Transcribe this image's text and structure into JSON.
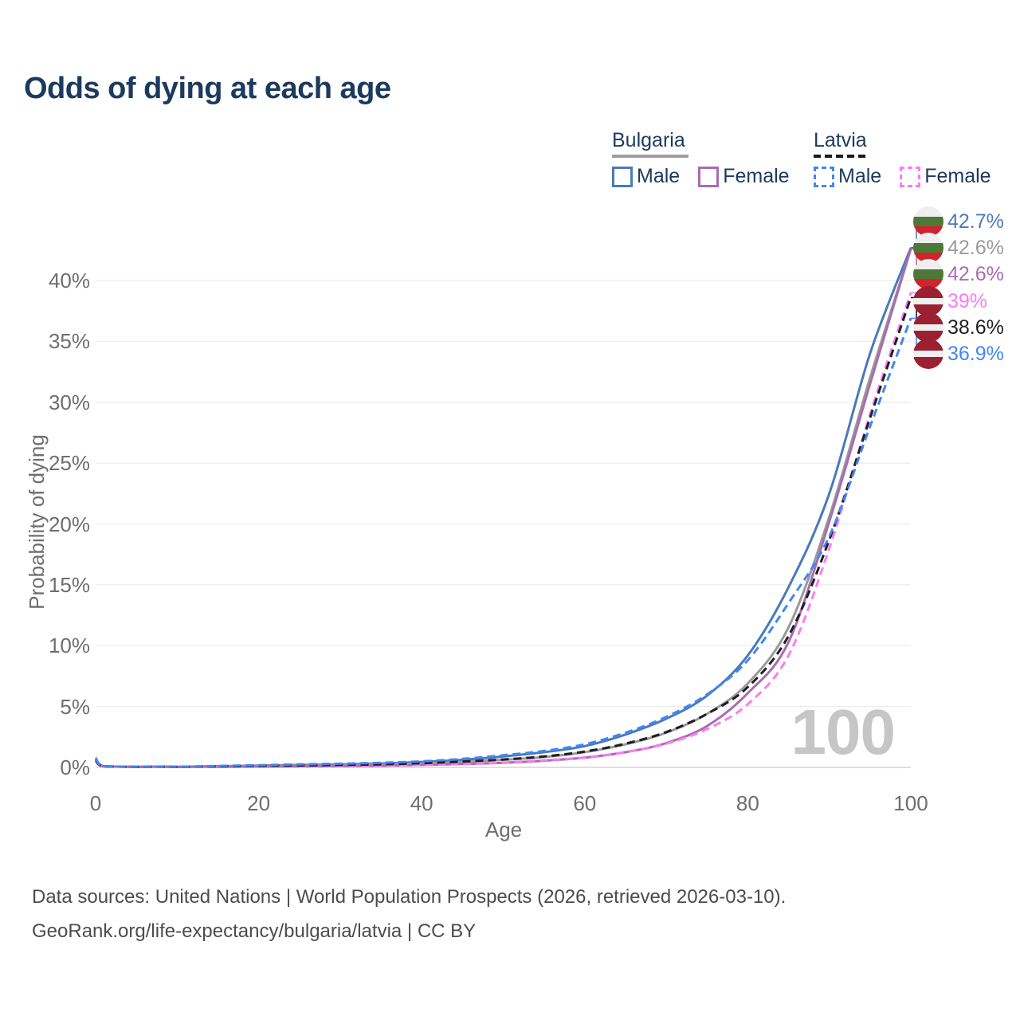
{
  "title": "Odds of dying at each age",
  "watermark": "100",
  "colors": {
    "title": "#1c3a5e",
    "legend_text": "#1d3a5e",
    "axis_text": "#6e6e6e",
    "grid": "#ececec",
    "axis_line": "#c9c9c9",
    "watermark": "#c6c6c6",
    "footer": "#4c4c4c"
  },
  "legend": {
    "groups": [
      {
        "label": "Bulgaria",
        "rule_style": "solid",
        "rule_color": "#9e9e9e",
        "items": [
          {
            "label": "Male",
            "color": "#4a7ab9",
            "dashed": false
          },
          {
            "label": "Female",
            "color": "#a96cb0",
            "dashed": false
          }
        ]
      },
      {
        "label": "Latvia",
        "rule_style": "dashed",
        "rule_color": "#1a1a1a",
        "items": [
          {
            "label": "Male",
            "color": "#4286f5",
            "dashed": true
          },
          {
            "label": "Female",
            "color": "#fa7cf5",
            "dashed": true
          }
        ]
      }
    ]
  },
  "chart_data": {
    "type": "line",
    "title": "Odds of dying at each age",
    "xlabel": "Age",
    "ylabel": "Probability of dying",
    "xlim": [
      0,
      100
    ],
    "ylim": [
      0,
      44
    ],
    "grid": "horizontal",
    "legend_position": "top-right",
    "x_ticks": [
      {
        "value": 0,
        "label": "0"
      },
      {
        "value": 20,
        "label": "20"
      },
      {
        "value": 40,
        "label": "40"
      },
      {
        "value": 60,
        "label": "60"
      },
      {
        "value": 80,
        "label": "80"
      },
      {
        "value": 100,
        "label": "100"
      }
    ],
    "y_ticks": [
      {
        "value": 0,
        "label": "0%"
      },
      {
        "value": 5,
        "label": "5%"
      },
      {
        "value": 10,
        "label": "10%"
      },
      {
        "value": 15,
        "label": "15%"
      },
      {
        "value": 20,
        "label": "20%"
      },
      {
        "value": 25,
        "label": "25%"
      },
      {
        "value": 30,
        "label": "30%"
      },
      {
        "value": 35,
        "label": "35%"
      },
      {
        "value": 40,
        "label": "40%"
      }
    ],
    "ages": [
      0,
      1,
      5,
      10,
      15,
      20,
      25,
      30,
      35,
      40,
      45,
      50,
      55,
      60,
      65,
      70,
      75,
      80,
      85,
      90,
      95,
      100
    ],
    "series": [
      {
        "name": "Bulgaria Male",
        "country": "Bulgaria",
        "sex": "Male",
        "color": "#4a7ab9",
        "dashed": false,
        "flag": "bulgaria",
        "end_label": "42.7%",
        "values": [
          0.8,
          0.1,
          0.05,
          0.05,
          0.1,
          0.15,
          0.2,
          0.25,
          0.32,
          0.45,
          0.62,
          0.9,
          1.25,
          1.75,
          2.7,
          4.0,
          5.9,
          9.2,
          14.8,
          22.5,
          34.0,
          42.7
        ]
      },
      {
        "name": "Bulgaria",
        "country": "Bulgaria",
        "sex": "Both",
        "color": "#9a9a9a",
        "dashed": false,
        "flag": "bulgaria",
        "end_label": "42.6%",
        "values": [
          0.75,
          0.09,
          0.04,
          0.04,
          0.08,
          0.12,
          0.15,
          0.18,
          0.23,
          0.32,
          0.45,
          0.62,
          0.85,
          1.25,
          1.9,
          2.85,
          4.4,
          6.9,
          11.5,
          20.6,
          32.0,
          42.6
        ]
      },
      {
        "name": "Bulgaria Female",
        "country": "Bulgaria",
        "sex": "Female",
        "color": "#a96cb0",
        "dashed": false,
        "flag": "bulgaria",
        "end_label": "42.6%",
        "values": [
          0.65,
          0.08,
          0.03,
          0.03,
          0.05,
          0.07,
          0.09,
          0.11,
          0.14,
          0.2,
          0.28,
          0.38,
          0.55,
          0.8,
          1.25,
          2.0,
          3.4,
          6.1,
          10.3,
          20.2,
          31.5,
          42.6
        ]
      },
      {
        "name": "Latvia Female",
        "country": "Latvia",
        "sex": "Female",
        "color": "#fa7cf5",
        "dashed": true,
        "flag": "latvia",
        "end_label": "39%",
        "values": [
          0.5,
          0.06,
          0.03,
          0.03,
          0.05,
          0.07,
          0.09,
          0.12,
          0.15,
          0.21,
          0.29,
          0.4,
          0.58,
          0.82,
          1.25,
          1.95,
          3.15,
          5.2,
          9.2,
          18.0,
          29.0,
          39.0
        ]
      },
      {
        "name": "Latvia",
        "country": "Latvia",
        "sex": "Both",
        "color": "#1f1f1f",
        "dashed": true,
        "flag": "latvia",
        "end_label": "38.6%",
        "values": [
          0.6,
          0.08,
          0.04,
          0.04,
          0.08,
          0.12,
          0.16,
          0.2,
          0.25,
          0.35,
          0.48,
          0.65,
          0.9,
          1.3,
          1.95,
          2.9,
          4.4,
          6.6,
          10.8,
          18.7,
          28.7,
          38.6
        ]
      },
      {
        "name": "Latvia Male",
        "country": "Latvia",
        "sex": "Male",
        "color": "#4286f5",
        "dashed": true,
        "flag": "latvia",
        "end_label": "36.9%",
        "values": [
          0.7,
          0.09,
          0.05,
          0.05,
          0.12,
          0.18,
          0.25,
          0.3,
          0.38,
          0.5,
          0.7,
          1.0,
          1.35,
          1.9,
          2.85,
          4.15,
          6.0,
          8.8,
          13.5,
          19.0,
          28.0,
          36.9
        ]
      }
    ]
  },
  "flags": {
    "bulgaria": {
      "stripes": [
        "#efefef",
        "#4e7837",
        "#d0242d"
      ],
      "heights": [
        13,
        12,
        13
      ]
    },
    "latvia": {
      "stripes": [
        "#9b2032",
        "#f0f0f0",
        "#9b2032"
      ],
      "heights": [
        15,
        8,
        15
      ]
    }
  },
  "footer": {
    "line1": "Data sources: United Nations | World Population Prospects (2026, retrieved 2026-03-10).",
    "line2": "GeoRank.org/life-expectancy/bulgaria/latvia | CC BY"
  }
}
